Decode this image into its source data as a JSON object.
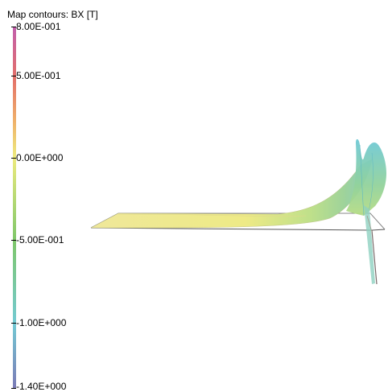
{
  "legend": {
    "title": "Map contours: BX [T]",
    "labels": [
      "8.00E-001",
      "5.00E-001",
      "0.00E+000",
      "-5.00E-001",
      "-1.00E+000",
      "-1.40E+000"
    ],
    "colors": {
      "top": "#c25fad",
      "red": "#e3706a",
      "orange": "#efb06a",
      "yellow": "#eeeb7e",
      "green": "#7fc76a",
      "cyan": "#74cad4",
      "bottom": "#7b7ab6"
    }
  }
}
